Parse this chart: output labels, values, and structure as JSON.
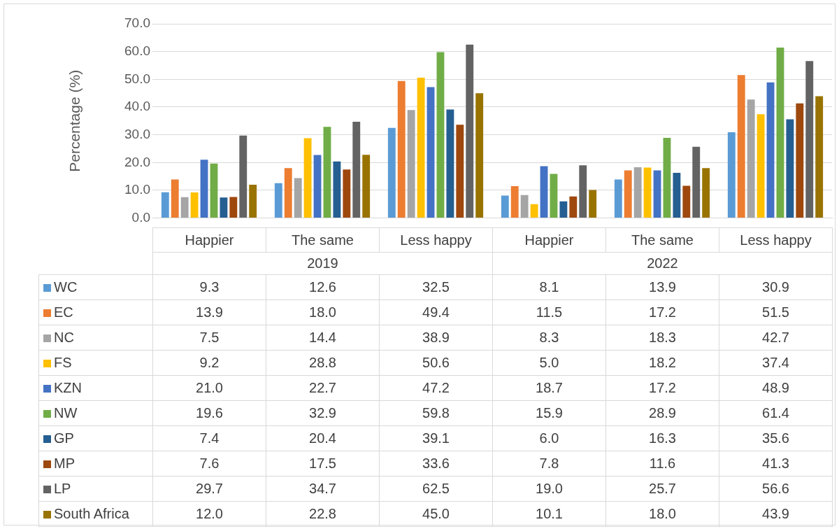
{
  "chart_data": {
    "type": "bar",
    "ylabel": "Percentage (%)",
    "categories": [
      "Happier",
      "The same",
      "Less happy",
      "Happier",
      "The same",
      "Less happy"
    ],
    "annotations": [
      "2019",
      "2022"
    ],
    "series": [
      {
        "name": "WC",
        "color": "#5b9bd5",
        "values": [
          9.3,
          12.6,
          32.5,
          8.1,
          13.9,
          30.9
        ],
        "value_labels": [
          "9.3",
          "12.6",
          "32.5",
          "8.1",
          "13.9",
          "30.9"
        ]
      },
      {
        "name": "EC",
        "color": "#ed7d31",
        "values": [
          13.9,
          18.0,
          49.4,
          11.5,
          17.2,
          51.5
        ],
        "value_labels": [
          "13.9",
          "18.0",
          "49.4",
          "11.5",
          "17.2",
          "51.5"
        ]
      },
      {
        "name": "NC",
        "color": "#a5a5a5",
        "values": [
          7.5,
          14.4,
          38.9,
          8.3,
          18.3,
          42.7
        ],
        "value_labels": [
          "7.5",
          "14.4",
          "38.9",
          "8.3",
          "18.3",
          "42.7"
        ]
      },
      {
        "name": "FS",
        "color": "#ffc000",
        "values": [
          9.2,
          28.8,
          50.6,
          5.0,
          18.2,
          37.4
        ],
        "value_labels": [
          "9.2",
          "28.8",
          "50.6",
          "5.0",
          "18.2",
          "37.4"
        ]
      },
      {
        "name": "KZN",
        "color": "#4472c4",
        "values": [
          21.0,
          22.7,
          47.2,
          18.7,
          17.2,
          48.9
        ],
        "value_labels": [
          "21.0",
          "22.7",
          "47.2",
          "18.7",
          "17.2",
          "48.9"
        ]
      },
      {
        "name": "NW",
        "color": "#70ad47",
        "values": [
          19.6,
          32.9,
          59.8,
          15.9,
          28.9,
          61.4
        ],
        "value_labels": [
          "19.6",
          "32.9",
          "59.8",
          "15.9",
          "28.9",
          "61.4"
        ]
      },
      {
        "name": "GP",
        "color": "#255e91",
        "values": [
          7.4,
          20.4,
          39.1,
          6.0,
          16.3,
          35.6
        ],
        "value_labels": [
          "7.4",
          "20.4",
          "39.1",
          "6.0",
          "16.3",
          "35.6"
        ]
      },
      {
        "name": "MP",
        "color": "#9e480e",
        "values": [
          7.6,
          17.5,
          33.6,
          7.8,
          11.6,
          41.3
        ],
        "value_labels": [
          "7.6",
          "17.5",
          "33.6",
          "7.8",
          "11.6",
          "41.3"
        ]
      },
      {
        "name": "LP",
        "color": "#636363",
        "values": [
          29.7,
          34.7,
          62.5,
          19.0,
          25.7,
          56.6
        ],
        "value_labels": [
          "29.7",
          "34.7",
          "62.5",
          "19.0",
          "25.7",
          "56.6"
        ]
      },
      {
        "name": "South Africa",
        "color": "#997300",
        "values": [
          12.0,
          22.8,
          45.0,
          10.1,
          18.0,
          43.9
        ],
        "value_labels": [
          "12.0",
          "22.8",
          "45.0",
          "10.1",
          "18.0",
          "43.9"
        ]
      }
    ],
    "ylim": [
      0,
      70
    ],
    "yticks": [
      {
        "value": 0,
        "label": "0.0"
      },
      {
        "value": 10,
        "label": "10.0"
      },
      {
        "value": 20,
        "label": "20.0"
      },
      {
        "value": 30,
        "label": "30.0"
      },
      {
        "value": 40,
        "label": "40.0"
      },
      {
        "value": 50,
        "label": "50.0"
      },
      {
        "value": 60,
        "label": "60.0"
      },
      {
        "value": 70,
        "label": "70.0"
      }
    ],
    "grid": "y",
    "legend": "bottom"
  }
}
